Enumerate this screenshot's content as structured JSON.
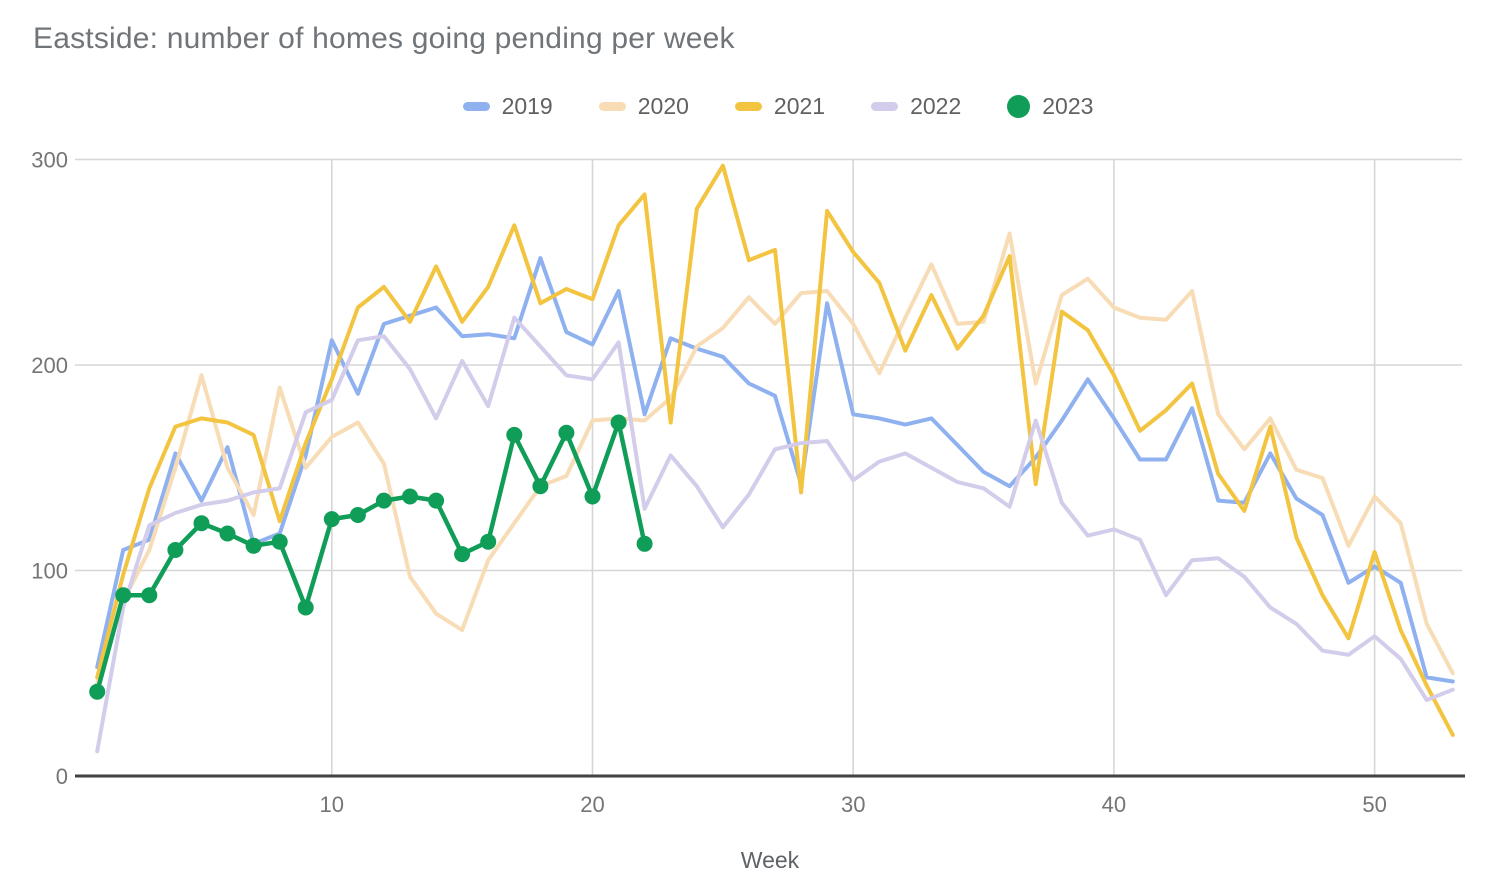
{
  "title": "Eastside: number of homes going pending per week",
  "xlabel": "Week",
  "colors": {
    "grid": "#d6d6d6",
    "axis_line": "#424242",
    "tick_label": "#757575",
    "series_2019": "#8fb1f0",
    "series_2020": "#f7dcb6",
    "series_2021": "#f2c440",
    "series_2022": "#d3ccea",
    "series_2023": "#0f9d58"
  },
  "legend": {
    "items": [
      {
        "label": "2019",
        "color": "#8fb1f0",
        "shape": "line"
      },
      {
        "label": "2020",
        "color": "#f7dcb6",
        "shape": "line"
      },
      {
        "label": "2021",
        "color": "#f2c440",
        "shape": "line"
      },
      {
        "label": "2022",
        "color": "#d3ccea",
        "shape": "line"
      },
      {
        "label": "2023",
        "color": "#0f9d58",
        "shape": "dot"
      }
    ]
  },
  "axes": {
    "y_ticks": [
      0,
      100,
      200,
      300
    ],
    "x_ticks": [
      10,
      20,
      30,
      40,
      50
    ]
  },
  "chart_data": {
    "type": "line",
    "title": "Eastside: number of homes going pending per week",
    "xlabel": "Week",
    "ylabel": "",
    "xlim": [
      1,
      53
    ],
    "ylim": [
      0,
      300
    ],
    "grid": true,
    "legend_position": "top-center",
    "x": [
      1,
      2,
      3,
      4,
      5,
      6,
      7,
      8,
      9,
      10,
      11,
      12,
      13,
      14,
      15,
      16,
      17,
      18,
      19,
      20,
      21,
      22,
      23,
      24,
      25,
      26,
      27,
      28,
      29,
      30,
      31,
      32,
      33,
      34,
      35,
      36,
      37,
      38,
      39,
      40,
      41,
      42,
      43,
      44,
      45,
      46,
      47,
      48,
      49,
      50,
      51,
      52,
      53
    ],
    "series": [
      {
        "name": "2019",
        "color": "#8fb1f0",
        "marker": "none",
        "values": [
          53,
          110,
          115,
          157,
          134,
          160,
          113,
          118,
          156,
          212,
          186,
          220,
          224,
          228,
          214,
          215,
          213,
          252,
          216,
          210,
          236,
          176,
          213,
          208,
          204,
          191,
          185,
          142,
          230,
          176,
          174,
          171,
          174,
          161,
          148,
          141,
          155,
          173,
          193,
          174,
          154,
          154,
          179,
          134,
          133,
          157,
          135,
          127,
          94,
          102,
          94,
          48,
          46
        ]
      },
      {
        "name": "2020",
        "color": "#f7dcb6",
        "marker": "none",
        "values": [
          45,
          85,
          110,
          150,
          195,
          150,
          127,
          189,
          150,
          165,
          172,
          152,
          97,
          79,
          71,
          105,
          123,
          141,
          146,
          173,
          174,
          173,
          184,
          209,
          218,
          233,
          220,
          235,
          236,
          220,
          196,
          223,
          249,
          220,
          221,
          264,
          191,
          234,
          242,
          228,
          223,
          222,
          236,
          176,
          159,
          174,
          149,
          145,
          112,
          136,
          123,
          74,
          50
        ]
      },
      {
        "name": "2021",
        "color": "#f2c440",
        "marker": "none",
        "values": [
          48,
          98,
          140,
          170,
          174,
          172,
          166,
          124,
          162,
          193,
          228,
          238,
          221,
          248,
          221,
          238,
          268,
          230,
          237,
          232,
          268,
          283,
          172,
          276,
          297,
          251,
          256,
          138,
          275,
          255,
          240,
          207,
          234,
          208,
          224,
          253,
          142,
          226,
          217,
          195,
          168,
          178,
          191,
          147,
          129,
          170,
          116,
          88,
          67,
          109,
          71,
          44,
          20
        ]
      },
      {
        "name": "2022",
        "color": "#d3ccea",
        "marker": "none",
        "values": [
          12,
          82,
          122,
          128,
          132,
          134,
          138,
          140,
          177,
          183,
          212,
          214,
          198,
          174,
          202,
          180,
          223,
          209,
          195,
          193,
          211,
          130,
          156,
          141,
          121,
          137,
          159,
          162,
          163,
          144,
          153,
          157,
          150,
          143,
          140,
          131,
          173,
          133,
          117,
          120,
          115,
          88,
          105,
          106,
          97,
          82,
          74,
          61,
          59,
          68,
          57,
          37,
          42
        ]
      },
      {
        "name": "2023",
        "color": "#0f9d58",
        "marker": "circle",
        "values": [
          41,
          88,
          88,
          110,
          123,
          118,
          112,
          114,
          82,
          125,
          127,
          134,
          136,
          134,
          108,
          114,
          166,
          141,
          167,
          136,
          172,
          113
        ]
      }
    ]
  }
}
